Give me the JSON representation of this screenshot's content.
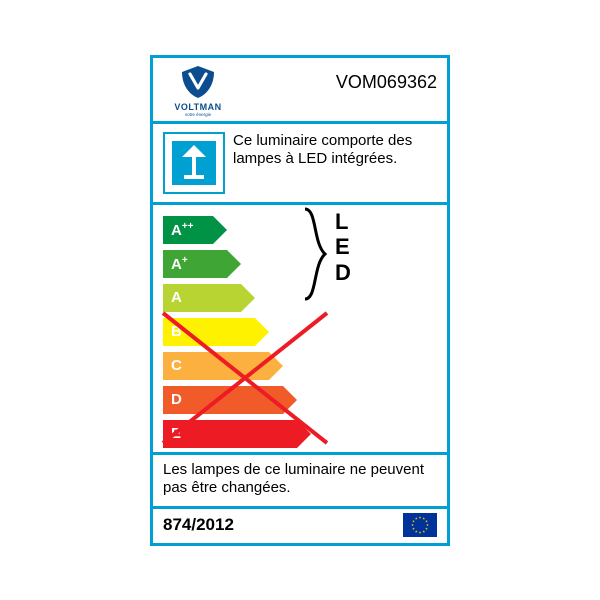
{
  "label": {
    "border_color": "#00a0d2",
    "model": "VOM069362",
    "brand": {
      "name": "VOLTMAN",
      "tagline": "votre énergie",
      "logo_color": "#0b4d8f"
    },
    "section1": {
      "icon_bg": "#00a0d2",
      "text": "Ce luminaire comporte des lampes à LED intégrées.",
      "fontsize": 15
    },
    "bracket_label": "L\nE\nD",
    "energy": {
      "rows": [
        {
          "grade": "A++",
          "color": "#009245",
          "width": 50
        },
        {
          "grade": "A+",
          "color": "#3fa535",
          "width": 64
        },
        {
          "grade": "A",
          "color": "#b8d433",
          "width": 78
        },
        {
          "grade": "B",
          "color": "#fff200",
          "width": 92
        },
        {
          "grade": "C",
          "color": "#fbb040",
          "width": 106
        },
        {
          "grade": "D",
          "color": "#f15a29",
          "width": 120
        },
        {
          "grade": "E",
          "color": "#ed1c24",
          "width": 134
        }
      ],
      "bracket_span_rows": 3,
      "cross_color": "#ed1c24",
      "cross_from_row": 3,
      "cross_to_row": 6,
      "label_fontsize": 15
    },
    "section3": {
      "text": "Les lampes de ce luminaire ne peuvent pas être changées.",
      "fontsize": 15
    },
    "footer": {
      "regulation": "874/2012",
      "flag": {
        "bg": "#003399",
        "star": "#ffcc00",
        "stars": 12
      }
    }
  }
}
